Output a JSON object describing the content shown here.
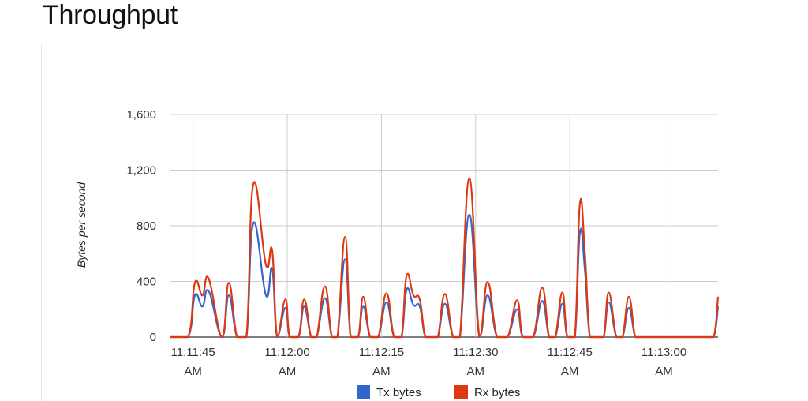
{
  "title": "Throughput",
  "chart_data": {
    "type": "line",
    "title": "Throughput",
    "ylabel": "Bytes per second",
    "xlabel": "",
    "ylim": [
      0,
      1600
    ],
    "yticks": [
      "0",
      "400",
      "800",
      "1,200",
      "1,600"
    ],
    "ytick_values": [
      0,
      400,
      800,
      1200,
      1600
    ],
    "xticks": [
      {
        "line1": "11:11:45",
        "line2": "AM",
        "t": 45
      },
      {
        "line1": "11:12:00",
        "line2": "AM",
        "t": 60
      },
      {
        "line1": "11:12:15",
        "line2": "AM",
        "t": 75
      },
      {
        "line1": "11:12:30",
        "line2": "AM",
        "t": 90
      },
      {
        "line1": "11:12:45",
        "line2": "AM",
        "t": 105
      },
      {
        "line1": "11:13:00",
        "line2": "AM",
        "t": 120
      }
    ],
    "x_units": "seconds past 11:11:00 AM",
    "xlim": [
      41.4,
      128.6
    ],
    "grid": true,
    "legend": "bottom",
    "series": [
      {
        "name": "Tx bytes",
        "color": "#3366cc",
        "x": [
          41.4,
          44.2,
          45.3,
          46.5,
          47.5,
          49.6,
          50.7,
          52.0,
          53.5,
          54.6,
          56.6,
          57.6,
          58.4,
          59.7,
          60.4,
          61.8,
          62.7,
          63.8,
          64.7,
          66.0,
          67.1,
          68.0,
          69.2,
          70.1,
          71.3,
          72.1,
          73.2,
          74.5,
          75.8,
          77.0,
          78.2,
          79.0,
          80.1,
          81.1,
          82.0,
          83.2,
          84.0,
          85.1,
          86.4,
          87.5,
          89.0,
          90.6,
          91.9,
          93.4,
          95.1,
          96.6,
          97.5,
          99.2,
          100.6,
          101.7,
          102.7,
          103.8,
          104.6,
          105.8,
          106.6,
          107.4,
          108.2,
          109.4,
          110.4,
          111.2,
          112.4,
          113.4,
          114.4,
          115.4,
          116.2,
          117.6,
          118.7,
          119.7,
          120.7,
          121.7,
          122.7,
          124.5,
          125.3,
          126.5,
          127.9,
          128.6
        ],
        "y": [
          0,
          0,
          300,
          220,
          330,
          0,
          300,
          0,
          0,
          820,
          300,
          490,
          0,
          210,
          0,
          0,
          220,
          0,
          0,
          280,
          0,
          0,
          560,
          0,
          0,
          220,
          0,
          0,
          250,
          0,
          0,
          340,
          230,
          220,
          0,
          0,
          0,
          240,
          0,
          0,
          880,
          0,
          300,
          0,
          0,
          200,
          0,
          0,
          260,
          0,
          0,
          240,
          0,
          0,
          750,
          480,
          0,
          0,
          0,
          250,
          0,
          0,
          210,
          0,
          0,
          0,
          0,
          0,
          0,
          0,
          0,
          0,
          0,
          0,
          0,
          220
        ]
      },
      {
        "name": "Rx bytes",
        "color": "#dc3912",
        "x": [
          41.4,
          44.2,
          45.3,
          46.5,
          47.5,
          49.6,
          50.7,
          52.0,
          53.5,
          54.6,
          56.6,
          57.6,
          58.4,
          59.7,
          60.4,
          61.8,
          62.7,
          63.8,
          64.7,
          66.0,
          67.1,
          68.0,
          69.2,
          70.1,
          71.3,
          72.1,
          73.2,
          74.5,
          75.8,
          77.0,
          78.2,
          79.0,
          80.1,
          81.1,
          82.0,
          83.2,
          84.0,
          85.1,
          86.4,
          87.5,
          89.0,
          90.6,
          91.9,
          93.4,
          95.1,
          96.6,
          97.5,
          99.2,
          100.6,
          101.7,
          102.7,
          103.8,
          104.6,
          105.8,
          106.6,
          107.4,
          108.2,
          109.4,
          110.4,
          111.2,
          112.4,
          113.4,
          114.4,
          115.4,
          116.2,
          117.6,
          118.7,
          119.7,
          120.7,
          121.7,
          122.7,
          124.5,
          125.3,
          126.5,
          127.9,
          128.6
        ],
        "y": [
          0,
          0,
          390,
          300,
          420,
          0,
          390,
          0,
          0,
          1100,
          520,
          620,
          0,
          270,
          0,
          0,
          270,
          0,
          0,
          365,
          0,
          0,
          720,
          0,
          0,
          290,
          0,
          0,
          315,
          0,
          0,
          440,
          300,
          270,
          0,
          0,
          0,
          310,
          0,
          0,
          1140,
          0,
          395,
          0,
          0,
          265,
          0,
          0,
          355,
          0,
          0,
          320,
          0,
          0,
          960,
          600,
          0,
          0,
          0,
          320,
          0,
          0,
          290,
          0,
          0,
          0,
          0,
          0,
          0,
          0,
          0,
          0,
          0,
          0,
          0,
          290
        ]
      }
    ]
  }
}
